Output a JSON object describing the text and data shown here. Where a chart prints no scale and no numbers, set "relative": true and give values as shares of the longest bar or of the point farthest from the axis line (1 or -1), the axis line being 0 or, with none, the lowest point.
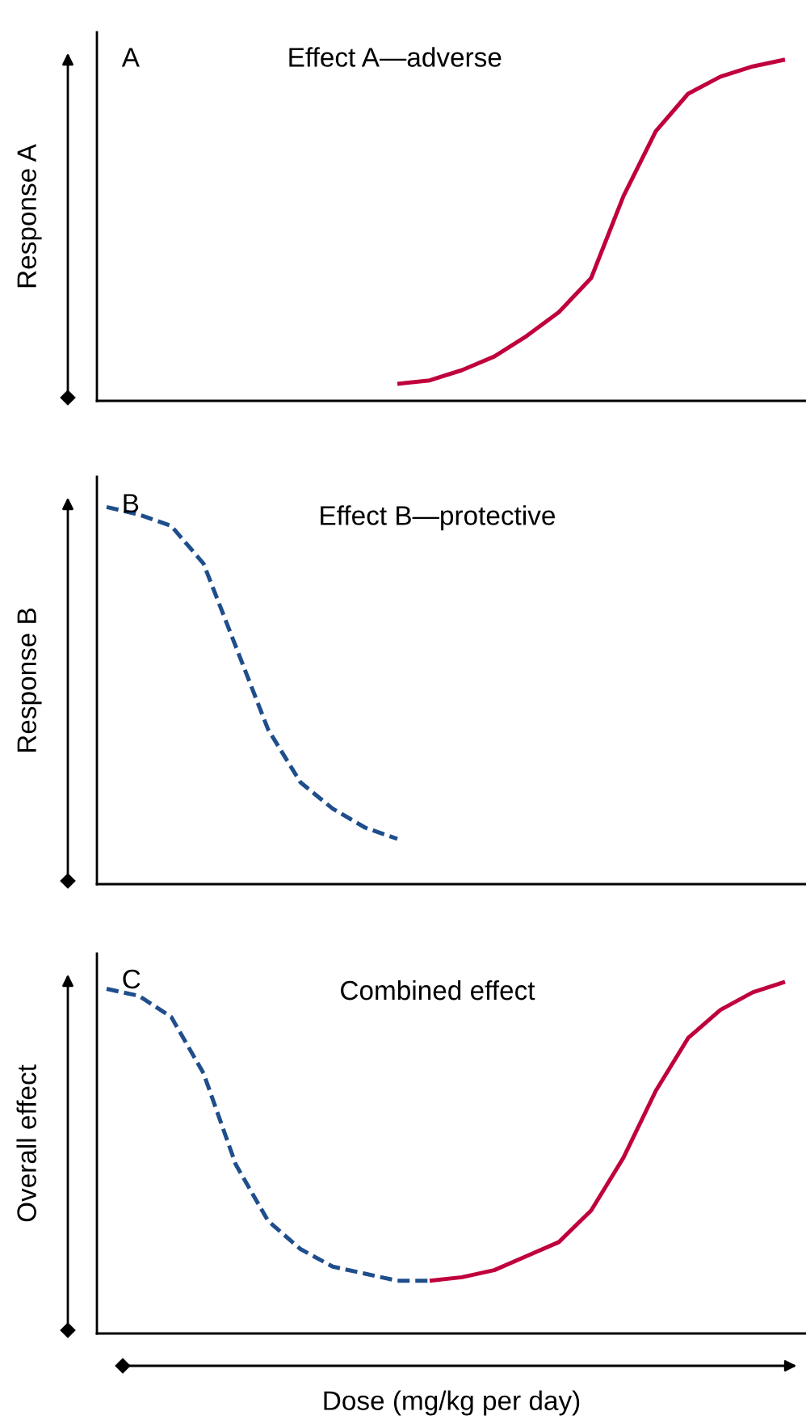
{
  "chart_data": [
    {
      "type": "line",
      "title": "Effect A—adverse",
      "ylabel": "Response A",
      "annotations": [
        "A"
      ],
      "relative": true,
      "tick_labels": false,
      "marker": "none",
      "categories": [
        null,
        null,
        null,
        null,
        null,
        null,
        null,
        null,
        null,
        null,
        null,
        null,
        null,
        null,
        null,
        null,
        null,
        null,
        null,
        null,
        null,
        null
      ],
      "series": [
        {
          "color": "#c0003c",
          "line_style": "solid",
          "values": [
            null,
            null,
            null,
            null,
            null,
            null,
            null,
            null,
            null,
            0.05,
            0.06,
            0.09,
            0.13,
            0.19,
            0.26,
            0.36,
            0.6,
            0.79,
            0.9,
            0.95,
            0.98,
            1.0
          ]
        }
      ]
    },
    {
      "type": "line",
      "title": "Effect B—protective",
      "ylabel": "Response B",
      "annotations": [
        "B"
      ],
      "relative": true,
      "tick_labels": false,
      "marker": "none",
      "categories": [
        null,
        null,
        null,
        null,
        null,
        null,
        null,
        null,
        null,
        null,
        null,
        null,
        null,
        null,
        null,
        null,
        null,
        null,
        null,
        null,
        null,
        null
      ],
      "series": [
        {
          "color": "#1f4e8c",
          "line_style": "dashed",
          "values": [
            1.0,
            0.98,
            0.95,
            0.85,
            0.63,
            0.41,
            0.27,
            0.2,
            0.15,
            0.12,
            null,
            null,
            null,
            null,
            null,
            null,
            null,
            null,
            null,
            null,
            null,
            null
          ]
        }
      ]
    },
    {
      "type": "line",
      "title": "Combined effect",
      "ylabel": "Overall effect",
      "xlabel": "Dose (mg/kg per day)",
      "annotations": [
        "C"
      ],
      "relative": true,
      "tick_labels": false,
      "marker": "none",
      "categories": [
        null,
        null,
        null,
        null,
        null,
        null,
        null,
        null,
        null,
        null,
        null,
        null,
        null,
        null,
        null,
        null,
        null,
        null,
        null,
        null,
        null,
        null
      ],
      "series": [
        {
          "color": "#1f4e8c",
          "line_style": "dashed",
          "values": [
            0.98,
            0.96,
            0.9,
            0.74,
            0.48,
            0.32,
            0.24,
            0.19,
            0.17,
            0.15,
            0.15,
            null,
            null,
            null,
            null,
            null,
            null,
            null,
            null,
            null,
            null,
            null
          ]
        },
        {
          "color": "#c0003c",
          "line_style": "solid",
          "values": [
            null,
            null,
            null,
            null,
            null,
            null,
            null,
            null,
            null,
            null,
            0.15,
            0.16,
            0.18,
            0.22,
            0.26,
            0.35,
            0.5,
            0.69,
            0.84,
            0.92,
            0.97,
            1.0
          ]
        }
      ]
    }
  ]
}
